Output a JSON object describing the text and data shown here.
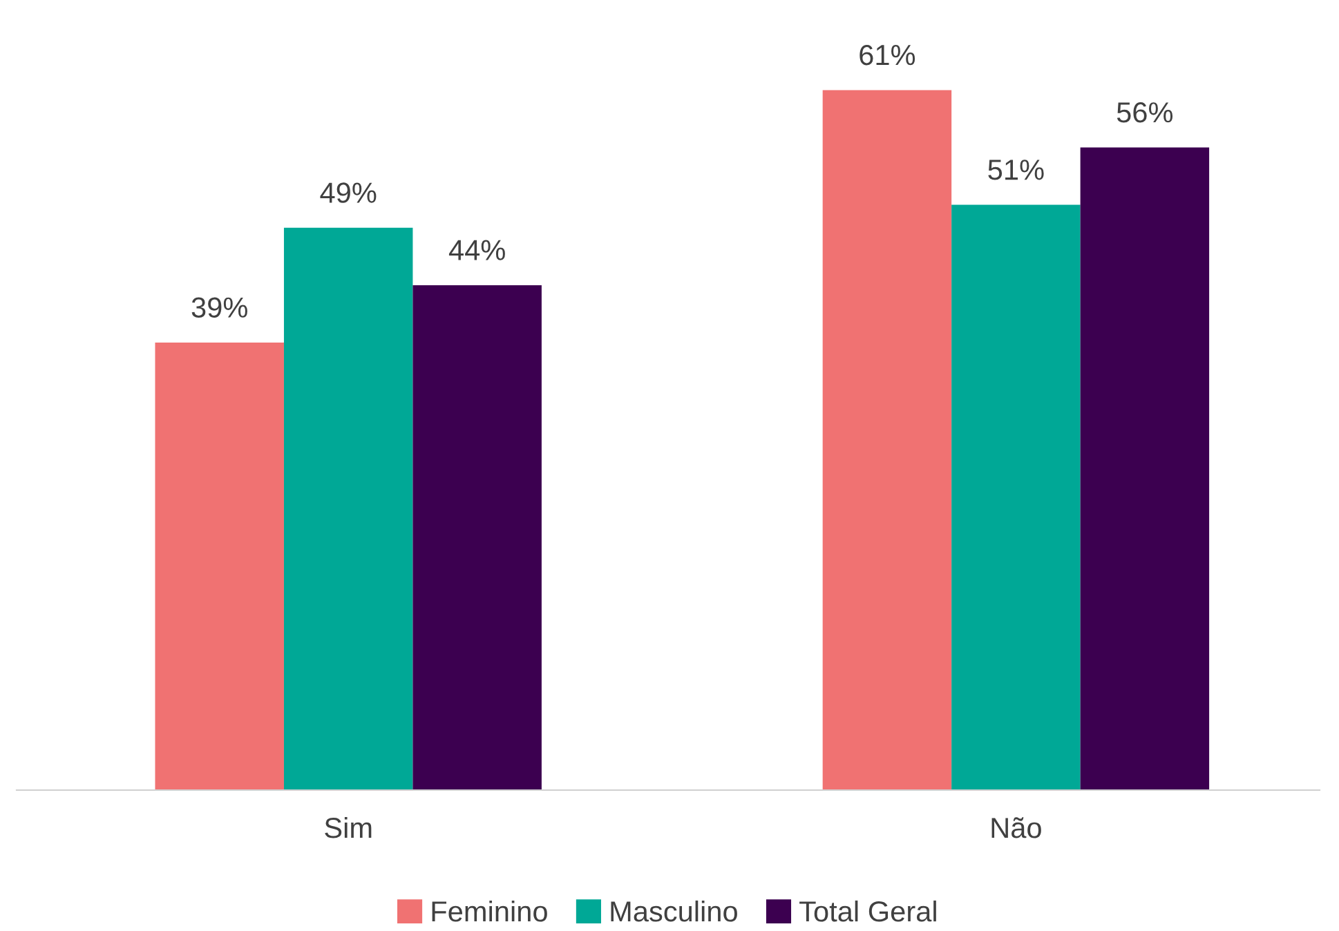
{
  "chart_data": {
    "type": "bar",
    "categories": [
      "Sim",
      "Não"
    ],
    "series": [
      {
        "name": "Feminino",
        "color": "#f07272",
        "values": [
          39,
          61
        ],
        "value_labels": [
          "39%",
          "61%"
        ]
      },
      {
        "name": "Masculino",
        "color": "#00a896",
        "values": [
          49,
          51
        ],
        "value_labels": [
          "49%",
          "51%"
        ]
      },
      {
        "name": "Total Geral",
        "color": "#3c0050",
        "values": [
          44,
          56
        ],
        "value_labels": [
          "44%",
          "56%"
        ]
      }
    ],
    "grid": false,
    "legend": "bottom"
  }
}
